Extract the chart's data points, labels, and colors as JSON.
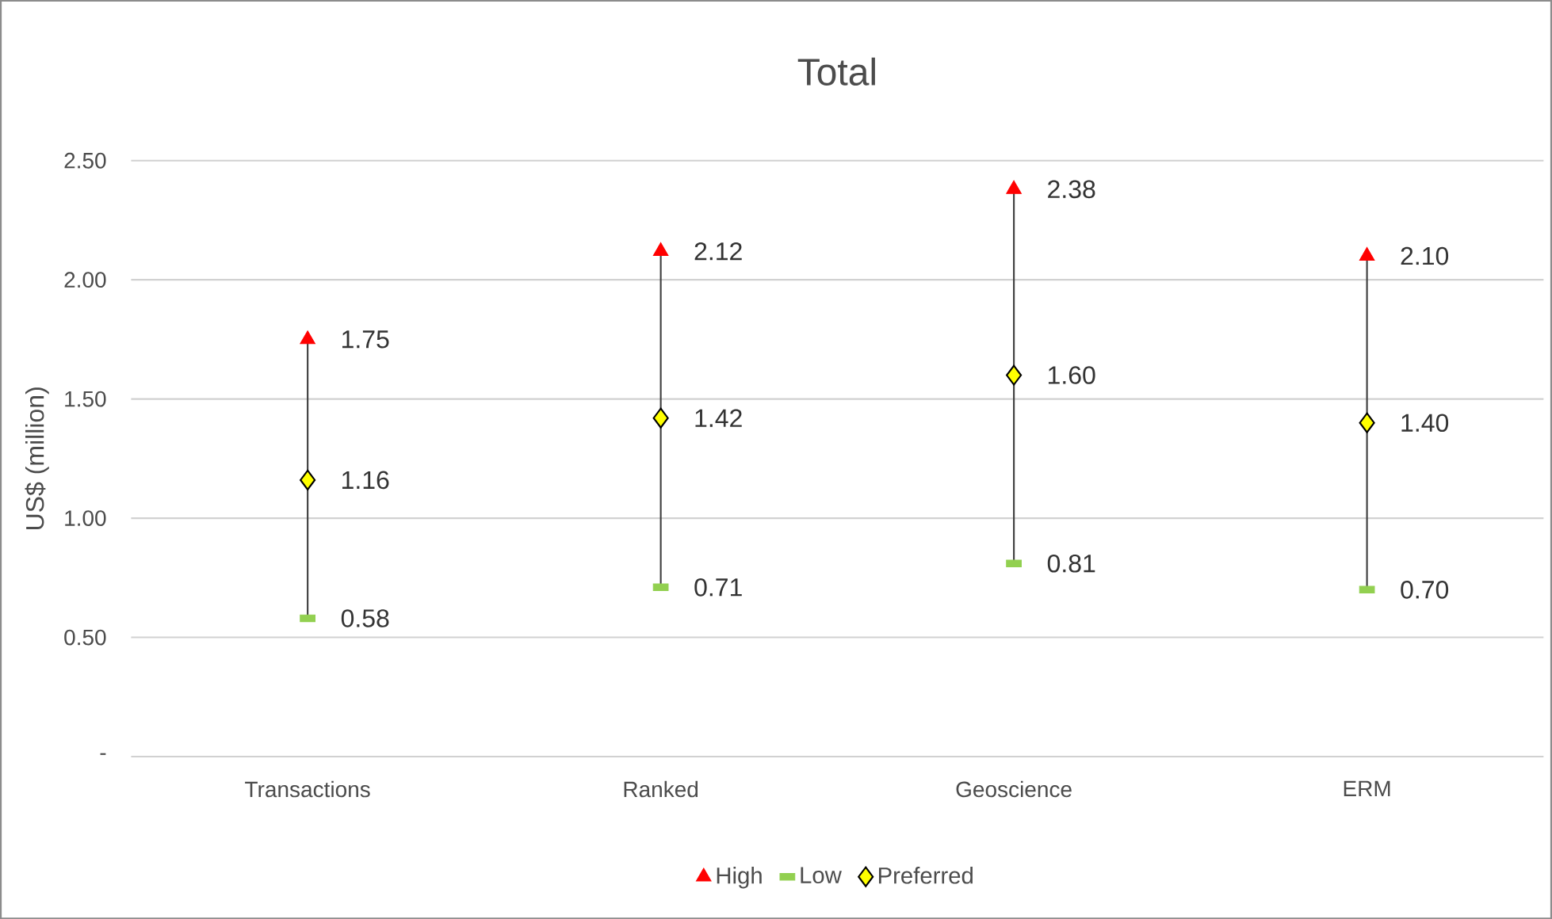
{
  "chart_data": {
    "type": "scatter",
    "title": "Total",
    "ylabel": "US$ (million)",
    "categories": [
      "Transactions",
      "Ranked",
      "Geoscience",
      "ERM"
    ],
    "series": [
      {
        "name": "High",
        "color": "#ff0000",
        "marker": "triangle",
        "values": [
          1.75,
          2.12,
          2.38,
          2.1
        ],
        "value_labels": [
          "1.75",
          "2.12",
          "2.38",
          "2.10"
        ]
      },
      {
        "name": "Low",
        "color": "#92d050",
        "values": [
          0.58,
          0.71,
          0.81,
          0.7
        ],
        "value_labels": [
          "0.58",
          "0.71",
          "0.81",
          "0.70"
        ]
      },
      {
        "name": "Preferred",
        "color": "#ffff00",
        "marker": "diamond",
        "values": [
          1.16,
          1.42,
          1.6,
          1.4
        ],
        "value_labels": [
          "1.16",
          "1.42",
          "1.60",
          "1.40"
        ]
      }
    ],
    "ylim": [
      0,
      2.5
    ],
    "yticks": [
      {
        "value": 0,
        "label": "-"
      },
      {
        "value": 0.5,
        "label": "0.50"
      },
      {
        "value": 1.0,
        "label": "1.00"
      },
      {
        "value": 1.5,
        "label": "1.50"
      },
      {
        "value": 2.0,
        "label": "2.00"
      },
      {
        "value": 2.5,
        "label": "2.50"
      }
    ],
    "grid": "y",
    "legend": "bottom"
  }
}
